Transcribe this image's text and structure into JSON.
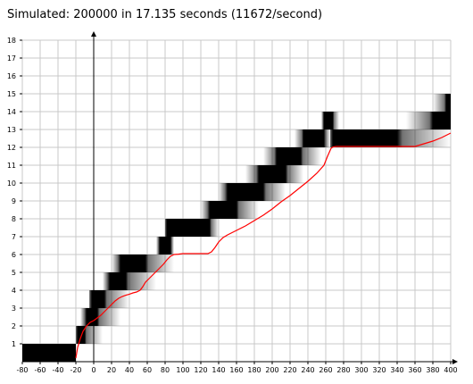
{
  "status_text": "Simulated: 200000 in 17.135 seconds (11672/second)",
  "chart_data": {
    "type": "heatmap",
    "title": "",
    "xlabel": "",
    "ylabel": "",
    "xlim": [
      -80,
      400
    ],
    "ylim": [
      0,
      18
    ],
    "grid": true,
    "x_ticks": [
      -80,
      -60,
      -40,
      -20,
      0,
      20,
      40,
      60,
      80,
      100,
      120,
      140,
      160,
      180,
      200,
      220,
      240,
      260,
      280,
      300,
      320,
      340,
      360,
      380,
      400
    ],
    "y_ticks": [
      1,
      2,
      3,
      4,
      5,
      6,
      7,
      8,
      9,
      10,
      11,
      12,
      13,
      14,
      15,
      16,
      17,
      18
    ],
    "colors": {
      "density": "#000000",
      "mean_line": "#ff0000",
      "grid": "#c8c8c8",
      "axis": "#000000"
    },
    "density_bands": [
      {
        "y": [
          0,
          1
        ],
        "x": [
          -80,
          -20
        ],
        "dark": [
          -80,
          -20
        ],
        "fade": 0
      },
      {
        "y": [
          1,
          2
        ],
        "x": [
          -20,
          10
        ],
        "dark": [
          -18,
          -10
        ],
        "fade": 12
      },
      {
        "y": [
          2,
          3
        ],
        "x": [
          -15,
          30
        ],
        "dark": [
          -8,
          4
        ],
        "fade": 16
      },
      {
        "y": [
          3,
          4
        ],
        "x": [
          -5,
          40
        ],
        "dark": [
          -2,
          12
        ],
        "fade": 18
      },
      {
        "y": [
          4,
          5
        ],
        "x": [
          10,
          70
        ],
        "dark": [
          18,
          36
        ],
        "fade": 20
      },
      {
        "y": [
          5,
          6
        ],
        "x": [
          20,
          90
        ],
        "dark": [
          30,
          58
        ],
        "fade": 20
      },
      {
        "y": [
          6,
          7
        ],
        "x": [
          70,
          90
        ],
        "dark": [
          74,
          86
        ],
        "fade": 10
      },
      {
        "y": [
          7,
          8
        ],
        "x": [
          80,
          140
        ],
        "dark": [
          82,
          130
        ],
        "fade": 12
      },
      {
        "y": [
          8,
          9
        ],
        "x": [
          120,
          185
        ],
        "dark": [
          130,
          160
        ],
        "fade": 18
      },
      {
        "y": [
          9,
          10
        ],
        "x": [
          140,
          215
        ],
        "dark": [
          150,
          190
        ],
        "fade": 20
      },
      {
        "y": [
          10,
          11
        ],
        "x": [
          170,
          235
        ],
        "dark": [
          185,
          215
        ],
        "fade": 18
      },
      {
        "y": [
          11,
          12
        ],
        "x": [
          190,
          255
        ],
        "dark": [
          205,
          232
        ],
        "fade": 16
      },
      {
        "y": [
          12,
          13
        ],
        "x": [
          225,
          265
        ],
        "dark": [
          235,
          258
        ],
        "fade": 12
      },
      {
        "y": [
          13,
          14
        ],
        "x": [
          255,
          275
        ],
        "dark": [
          258,
          268
        ],
        "fade": 8
      },
      {
        "y": [
          12,
          13
        ],
        "x": [
          265,
          400
        ],
        "dark": [
          268,
          340
        ],
        "fade": 40
      },
      {
        "y": [
          13,
          14
        ],
        "x": [
          350,
          400
        ],
        "dark": [
          380,
          400
        ],
        "fade": 25
      },
      {
        "y": [
          14,
          15
        ],
        "x": [
          380,
          400
        ],
        "dark": [
          395,
          400
        ],
        "fade": 14
      }
    ],
    "series": [
      {
        "x": [
          -20,
          -18,
          -15,
          -12,
          -8,
          -4,
          0,
          4,
          8,
          12,
          16,
          20,
          24,
          28,
          32,
          36,
          40,
          44,
          48,
          52,
          55,
          58,
          62,
          66,
          70,
          74,
          78,
          82,
          86,
          90,
          95,
          100,
          110,
          120,
          128,
          132,
          136,
          140,
          145,
          150,
          160,
          170,
          180,
          190,
          200,
          210,
          220,
          230,
          240,
          250,
          258,
          262,
          266,
          268,
          272,
          280,
          300,
          320,
          340,
          360,
          370,
          380,
          390,
          400
        ],
        "y": [
          0.2,
          0.8,
          1.3,
          1.7,
          2.0,
          2.2,
          2.3,
          2.45,
          2.6,
          2.8,
          3.0,
          3.2,
          3.4,
          3.55,
          3.65,
          3.72,
          3.78,
          3.85,
          3.9,
          4.0,
          4.2,
          4.45,
          4.65,
          4.85,
          5.05,
          5.25,
          5.45,
          5.7,
          5.9,
          6.0,
          6.02,
          6.05,
          6.05,
          6.05,
          6.05,
          6.15,
          6.4,
          6.7,
          6.95,
          7.1,
          7.35,
          7.6,
          7.9,
          8.2,
          8.55,
          8.95,
          9.3,
          9.7,
          10.1,
          10.55,
          11.0,
          11.5,
          11.95,
          12.02,
          12.05,
          12.05,
          12.05,
          12.05,
          12.05,
          12.05,
          12.2,
          12.35,
          12.55,
          12.8
        ]
      }
    ]
  }
}
